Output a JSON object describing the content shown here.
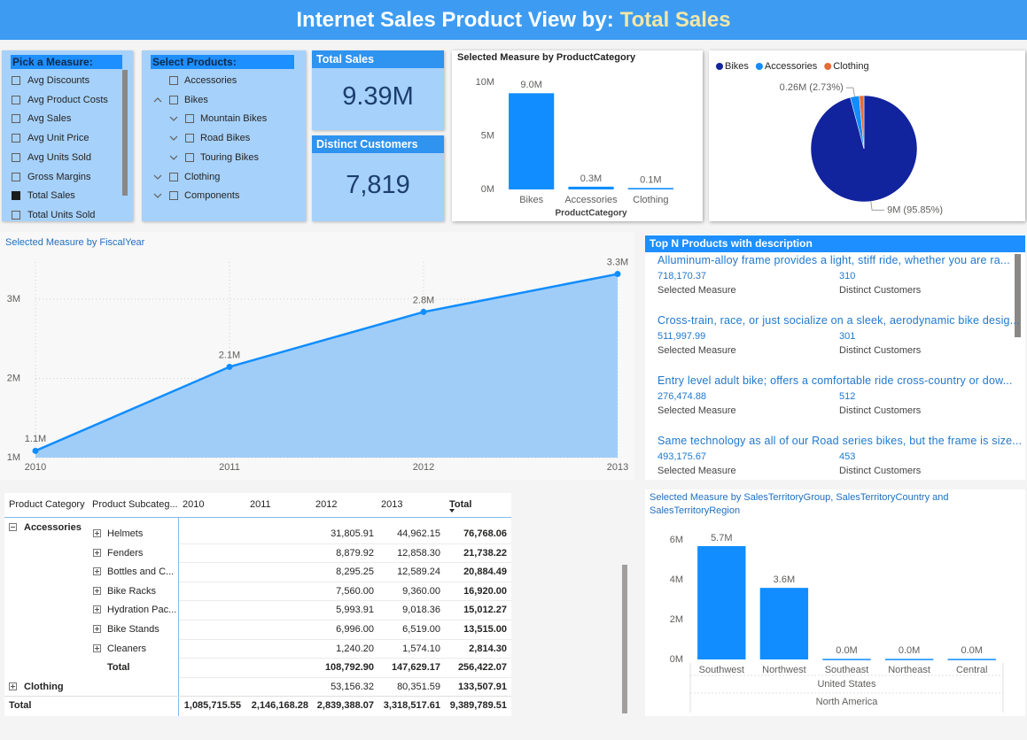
{
  "header": {
    "title": "Internet Sales Product View by:",
    "measure": "Total Sales"
  },
  "measure_slicer": {
    "title": "Pick a Measure:",
    "items": [
      {
        "label": "Avg Discounts",
        "checked": false
      },
      {
        "label": "Avg Product Costs",
        "checked": false
      },
      {
        "label": "Avg Sales",
        "checked": false
      },
      {
        "label": "Avg Unit Price",
        "checked": false
      },
      {
        "label": "Avg Units Sold",
        "checked": false
      },
      {
        "label": "Gross Margins",
        "checked": false
      },
      {
        "label": "Total Sales",
        "checked": true
      },
      {
        "label": "Total Units Sold",
        "checked": false
      }
    ]
  },
  "product_slicer": {
    "title": "Select Products:",
    "items": [
      {
        "label": "Accessories",
        "level": 0,
        "chevron": null
      },
      {
        "label": "Bikes",
        "level": 0,
        "chevron": "up"
      },
      {
        "label": "Mountain Bikes",
        "level": 1,
        "chevron": "down"
      },
      {
        "label": "Road Bikes",
        "level": 1,
        "chevron": "down"
      },
      {
        "label": "Touring Bikes",
        "level": 1,
        "chevron": "down"
      },
      {
        "label": "Clothing",
        "level": 0,
        "chevron": "down"
      },
      {
        "label": "Components",
        "level": 0,
        "chevron": "down"
      }
    ]
  },
  "cards": [
    {
      "title": "Total Sales",
      "value": "9.39M"
    },
    {
      "title": "Distinct Customers",
      "value": "7,819"
    }
  ],
  "chart_data": [
    {
      "type": "bar",
      "title": "Selected Measure by ProductCategory",
      "x_label": "ProductCategory",
      "categories": [
        "Bikes",
        "Accessories",
        "Clothing"
      ],
      "values": [
        8999859.53,
        256422.07,
        133507.91
      ],
      "value_labels": [
        "9.0M",
        "0.3M",
        "0.1M"
      ],
      "color": "#118dff",
      "ylim": [
        0,
        10600000
      ],
      "yticks": [
        {
          "value": 0,
          "label": "0M"
        },
        {
          "value": 5000000,
          "label": "5M"
        },
        {
          "value": 10000000,
          "label": "10M"
        }
      ],
      "grid": false
    },
    {
      "type": "pie",
      "categories": [
        "Bikes",
        "Accessories",
        "Clothing"
      ],
      "values": [
        95.85,
        2.73,
        1.42
      ],
      "value_labels": [
        "9M (95.85%)",
        "0.26M (2.73%)",
        null
      ],
      "colors": [
        "#12239e",
        "#118dff",
        "#e66c37"
      ],
      "legend": "top-left"
    },
    {
      "type": "line",
      "title": "Selected Measure by FiscalYear",
      "x": [
        2010,
        2011,
        2012,
        2013
      ],
      "values": [
        1085715.55,
        2146168.28,
        2839388.07,
        3318517.61
      ],
      "value_labels": [
        "1.1M",
        "2.1M",
        "2.8M",
        "3.3M"
      ],
      "color": "#118dff",
      "fill": "#a0cdf8",
      "area": true,
      "xlim": [
        2010,
        2013
      ],
      "xticks": [
        2010,
        2011,
        2012,
        2013
      ],
      "ylim": [
        1000000,
        3470000
      ],
      "yticks": [
        {
          "value": 1000000,
          "label": "1M"
        },
        {
          "value": 2000000,
          "label": "2M"
        },
        {
          "value": 3000000,
          "label": "3M"
        }
      ],
      "grid": true
    },
    {
      "type": "bar",
      "title": "Selected Measure by SalesTerritoryGroup, SalesTerritoryCountry and SalesTerritoryRegion",
      "categories": [
        "Southwest",
        "Northwest",
        "Southeast",
        "Northeast",
        "Central"
      ],
      "values": [
        5700000,
        3600000,
        30000,
        30000,
        30000
      ],
      "value_labels": [
        "5.7M",
        "3.6M",
        "0.0M",
        "0.0M",
        "0.0M"
      ],
      "x_groups": [
        "United States",
        "North America"
      ],
      "color": "#118dff",
      "ylim": [
        0,
        6900000
      ],
      "yticks": [
        {
          "value": 0,
          "label": "0M"
        },
        {
          "value": 2000000,
          "label": "2M"
        },
        {
          "value": 4000000,
          "label": "4M"
        },
        {
          "value": 6000000,
          "label": "6M"
        }
      ],
      "grid": false
    }
  ],
  "top_products": {
    "title": "Top N Products with description",
    "measure_label": "Selected Measure",
    "customers_label": "Distinct Customers",
    "items": [
      {
        "description": "Alluminum-alloy frame provides a light, stiff ride, whether you are ra...",
        "measure": "718,170.37",
        "customers": "310"
      },
      {
        "description": "Cross-train, race, or just socialize on a sleek, aerodynamic bike desig...",
        "measure": "511,997.99",
        "customers": "301"
      },
      {
        "description": "Entry level adult bike; offers a comfortable ride cross-country or dow...",
        "measure": "276,474.88",
        "customers": "512"
      },
      {
        "description": "Same technology as all of our Road series bikes, but the frame is size...",
        "measure": "493,175.67",
        "customers": "453"
      }
    ]
  },
  "matrix": {
    "headers": [
      "Product Category",
      "Product Subcateg...",
      "2010",
      "2011",
      "2012",
      "2013",
      "Total"
    ],
    "rows": [
      {
        "style": "detail",
        "expander": "minus",
        "cells": [
          "Accessories",
          "Helmets",
          null,
          null,
          "31,805.91",
          "44,962.15",
          "76,768.06"
        ]
      },
      {
        "style": "detail",
        "cells": [
          null,
          "Fenders",
          null,
          null,
          "8,879.92",
          "12,858.30",
          "21,738.22"
        ]
      },
      {
        "style": "detail",
        "cells": [
          null,
          "Bottles and C...",
          null,
          null,
          "8,295.25",
          "12,589.24",
          "20,884.49"
        ]
      },
      {
        "style": "detail",
        "cells": [
          null,
          "Bike Racks",
          null,
          null,
          "7,560.00",
          "9,360.00",
          "16,920.00"
        ]
      },
      {
        "style": "detail",
        "cells": [
          null,
          "Hydration Pac...",
          null,
          null,
          "5,993.91",
          "9,018.36",
          "15,012.27"
        ]
      },
      {
        "style": "detail",
        "cells": [
          null,
          "Bike Stands",
          null,
          null,
          "6,996.00",
          "6,519.00",
          "13,515.00"
        ]
      },
      {
        "style": "detail",
        "cells": [
          null,
          "Cleaners",
          null,
          null,
          "1,240.20",
          "1,574.10",
          "2,814.30"
        ]
      },
      {
        "style": "subtotal",
        "cells": [
          null,
          "Total",
          null,
          null,
          "108,792.90",
          "147,629.17",
          "256,422.07"
        ]
      },
      {
        "style": "group",
        "expander": "plus",
        "cells": [
          "Clothing",
          null,
          null,
          null,
          "53,156.32",
          "80,351.59",
          "133,507.91"
        ]
      },
      {
        "style": "total",
        "cells": [
          "Total",
          null,
          "1,085,715.55",
          "2,146,168.28",
          "2,839,388.07",
          "3,318,517.61",
          "9,389,789.51"
        ]
      }
    ]
  }
}
